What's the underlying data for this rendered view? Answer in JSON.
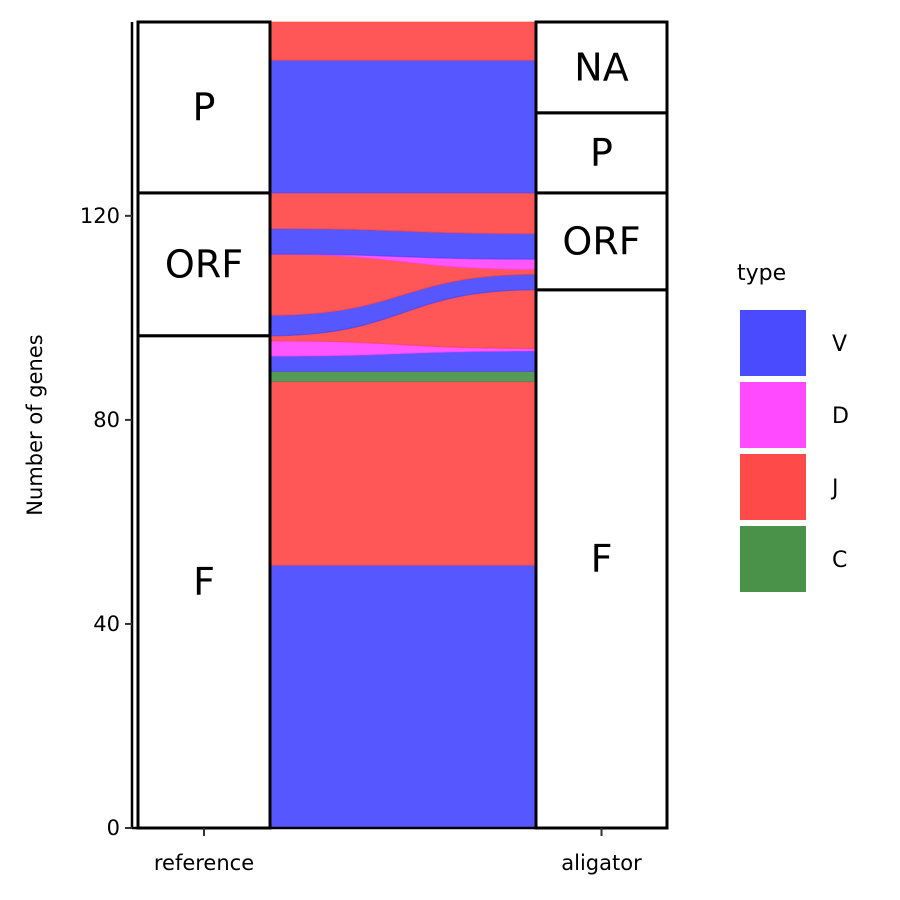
{
  "chart_data": {
    "type": "alluvial",
    "ylabel": "Number of genes",
    "xlabel": "",
    "ylim": [
      0,
      158
    ],
    "yticks": [
      0,
      40,
      80,
      120
    ],
    "axes": [
      "reference",
      "aligator"
    ],
    "strata": {
      "reference": [
        {
          "label": "F",
          "from": 0,
          "to": 96.5
        },
        {
          "label": "ORF",
          "from": 96.5,
          "to": 124.5
        },
        {
          "label": "P",
          "from": 124.5,
          "to": 158
        }
      ],
      "aligator": [
        {
          "label": "F",
          "from": 0,
          "to": 105.5
        },
        {
          "label": "ORF",
          "from": 105.5,
          "to": 124.5
        },
        {
          "label": "P",
          "from": 124.5,
          "to": 140.2
        },
        {
          "label": "NA",
          "from": 140.2,
          "to": 158
        }
      ]
    },
    "flows": [
      {
        "type": "V",
        "left": [
          0,
          51.5
        ],
        "right": [
          0,
          51.5
        ]
      },
      {
        "type": "J",
        "left": [
          51.5,
          87.5
        ],
        "right": [
          51.5,
          87.5
        ]
      },
      {
        "type": "C",
        "left": [
          87.5,
          89.5
        ],
        "right": [
          87.5,
          89.5
        ]
      },
      {
        "type": "V",
        "left": [
          89.5,
          92.5
        ],
        "right": [
          89.5,
          93.5
        ]
      },
      {
        "type": "D",
        "left": [
          92.5,
          95.5
        ],
        "right": [
          93.5,
          94
        ]
      },
      {
        "type": "J",
        "left": [
          95.5,
          96.5
        ],
        "right": [
          94,
          105.5
        ]
      },
      {
        "type": "V",
        "left": [
          96.5,
          100.5
        ],
        "right": [
          105.5,
          108.5
        ]
      },
      {
        "type": "J",
        "left": [
          100.5,
          112.5
        ],
        "right": [
          108.5,
          109.5
        ]
      },
      {
        "type": "D",
        "left": [
          112.5,
          112.5
        ],
        "right": [
          109.5,
          111.5
        ]
      },
      {
        "type": "V",
        "left": [
          112.5,
          117.5
        ],
        "right": [
          111.5,
          116.5
        ]
      },
      {
        "type": "J",
        "left": [
          117.5,
          124.5
        ],
        "right": [
          116.5,
          124.5
        ]
      },
      {
        "type": "V",
        "left": [
          124.5,
          150.5
        ],
        "right": [
          124.5,
          150.5
        ]
      },
      {
        "type": "J",
        "left": [
          150.5,
          158
        ],
        "right": [
          150.5,
          158
        ]
      }
    ],
    "legend": {
      "title": "type",
      "position": "right",
      "items": [
        {
          "label": "V",
          "color": "#4040ff"
        },
        {
          "label": "D",
          "color": "#ff40ff"
        },
        {
          "label": "J",
          "color": "#ff4040"
        },
        {
          "label": "C",
          "color": "#408c40"
        }
      ]
    },
    "grid": false
  }
}
